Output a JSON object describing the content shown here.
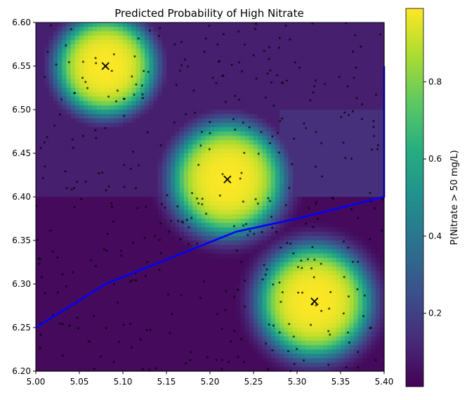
{
  "chart_data": {
    "type": "heatmap",
    "title": "Predicted Probability of High Nitrate",
    "xlabel": "",
    "ylabel": "",
    "xlim": [
      5.0,
      5.4
    ],
    "ylim": [
      6.2,
      6.6
    ],
    "x_ticks": [
      "5.00",
      "5.05",
      "5.10",
      "5.15",
      "5.20",
      "5.25",
      "5.30",
      "5.35",
      "5.40"
    ],
    "y_ticks": [
      "6.20",
      "6.25",
      "6.30",
      "6.35",
      "6.40",
      "6.45",
      "6.50",
      "6.55",
      "6.60"
    ],
    "colormap": "viridis",
    "grid": false,
    "value_range": [
      0.01,
      0.99
    ],
    "hotspots": [
      {
        "x": 5.08,
        "y": 6.55,
        "peak": 0.99,
        "radius": 0.075
      },
      {
        "x": 5.22,
        "y": 6.42,
        "peak": 0.99,
        "radius": 0.085
      },
      {
        "x": 5.32,
        "y": 6.28,
        "peak": 0.99,
        "radius": 0.085
      }
    ],
    "centers_marker": "x",
    "boundary_line": {
      "color": "#0000ff",
      "points": [
        [
          5.0,
          6.25
        ],
        [
          5.08,
          6.3
        ],
        [
          5.23,
          6.36
        ],
        [
          5.3,
          6.375
        ],
        [
          5.4,
          6.4
        ],
        [
          5.4,
          6.55
        ]
      ]
    },
    "colorbar": {
      "label": "P(Nitrate > 50 mg/L)",
      "ticks": [
        "0.2",
        "0.4",
        "0.6",
        "0.8"
      ],
      "tick_values": [
        0.2,
        0.4,
        0.6,
        0.8
      ],
      "range": [
        0.01,
        0.99
      ]
    },
    "scatter_points_count": 400
  }
}
